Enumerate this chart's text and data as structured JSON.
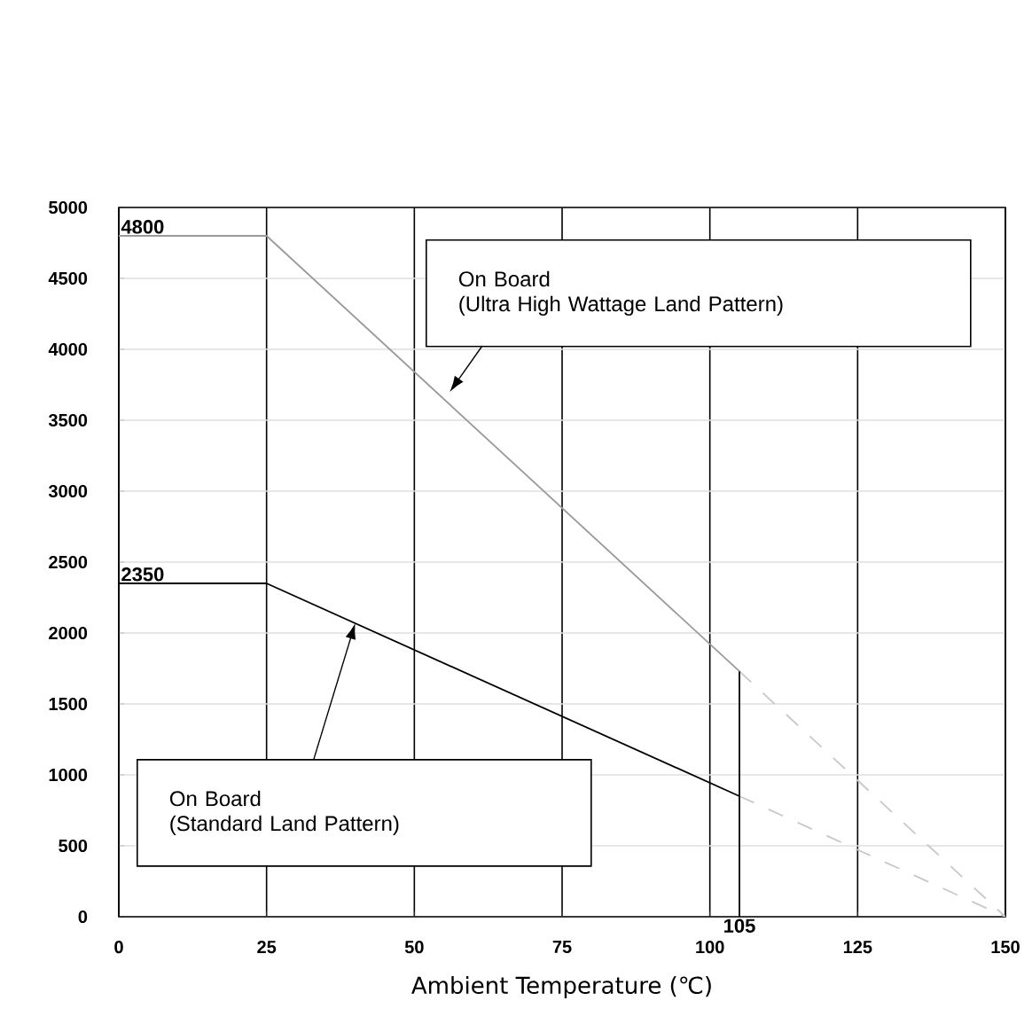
{
  "chart_data": {
    "type": "line",
    "xlabel": "Ambient Temperature (℃)",
    "xlim": [
      0,
      150
    ],
    "xticks": [
      0,
      25,
      50,
      75,
      100,
      125,
      150
    ],
    "ylim": [
      0,
      5000
    ],
    "yticks": [
      0,
      500,
      1000,
      1500,
      2000,
      2500,
      3000,
      3500,
      4000,
      4500,
      5000
    ],
    "grid": true,
    "marker": "none",
    "series": [
      {
        "color": "#9a9a9a",
        "x": [
          0,
          25,
          105
        ],
        "values": [
          4800,
          4800,
          1730
        ],
        "value_labels": [
          "4800",
          null,
          null
        ],
        "line_style": "solid"
      },
      {
        "color": "#c8c8c8",
        "x": [
          105,
          150
        ],
        "values": [
          1730,
          0
        ],
        "line_style": "dashed"
      },
      {
        "color": "#000000",
        "x": [
          0,
          25,
          105
        ],
        "values": [
          2350,
          2350,
          850
        ],
        "value_labels": [
          "2350",
          null,
          null
        ],
        "line_style": "solid"
      },
      {
        "color": "#c8c8c8",
        "x": [
          105,
          150
        ],
        "values": [
          850,
          0
        ],
        "line_style": "dashed"
      },
      {
        "color": "#000000",
        "x": [
          105,
          105
        ],
        "values": [
          0,
          1730
        ],
        "line_style": "solid"
      }
    ],
    "annotations": [
      "On Board",
      "(Ultra High Wattage Land Pattern)",
      "On Board",
      "(Standard Land Pattern)",
      {
        "text": "105",
        "x": 105,
        "y": 0
      }
    ]
  }
}
